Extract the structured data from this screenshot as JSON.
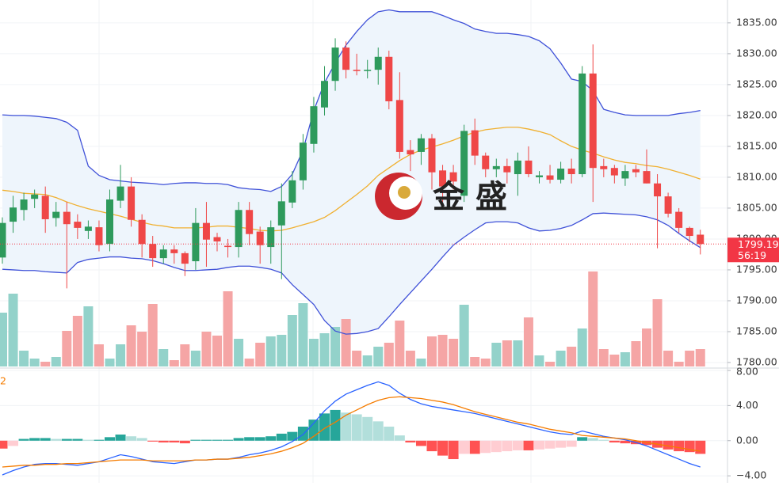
{
  "chart_data": [
    {
      "type": "candlestick",
      "watermark": "金 盛",
      "ylim": [
        1779.1,
        1838.7
      ],
      "yticks": [
        {
          "value": 1780,
          "label": "1780.00"
        },
        {
          "value": 1785,
          "label": "1785.00"
        },
        {
          "value": 1790,
          "label": "1790.00"
        },
        {
          "value": 1795,
          "label": "1795.00"
        },
        {
          "value": 1800,
          "label": "1800.00"
        },
        {
          "value": 1805,
          "label": "1805.00"
        },
        {
          "value": 1810,
          "label": "1810.00"
        },
        {
          "value": 1815,
          "label": "1815.00"
        },
        {
          "value": 1820,
          "label": "1820.00"
        },
        {
          "value": 1825,
          "label": "1825.00"
        },
        {
          "value": 1830,
          "label": "1830.00"
        },
        {
          "value": 1835,
          "label": "1835.00"
        }
      ],
      "grid": true,
      "up_color": "#2e9a5c",
      "down_color": "#ef4747",
      "volume_up_color": "#93d2ca",
      "volume_down_color": "#f5a5a5",
      "last_price": 1799.19,
      "countdown": "56:19",
      "last_price_color": "#f23645",
      "band_fill": "#eef5fc",
      "open": [
        1797.0,
        1802.8,
        1804.7,
        1806.5,
        1807.0,
        1803.4,
        1804.4,
        1802.8,
        1801.3,
        1801.9,
        1799.2,
        1806.2,
        1808.5,
        1803.1,
        1799.2,
        1796.9,
        1798.3,
        1797.7,
        1796.4,
        1802.6,
        1800.3,
        1798.9,
        1798.7,
        1804.7,
        1801.2,
        1798.7,
        1802.2,
        1805.9,
        1809.5,
        1815.4,
        1821.3,
        1825.6,
        1831.0,
        1827.4,
        1827.2,
        1827.4,
        1829.5,
        1822.5,
        1814.4,
        1814.1,
        1816.3,
        1811.1,
        1810.8,
        1807.0,
        1817.6,
        1813.5,
        1811.3,
        1811.8,
        1810.5,
        1812.7,
        1810.0,
        1810.3,
        1809.6,
        1811.4,
        1810.5,
        1826.8,
        1811.8,
        1811.5,
        1809.8,
        1811.3,
        1811.0,
        1809.0,
        1806.9,
        1804.4,
        1801.8,
        1800.7
      ],
      "high": [
        1803.5,
        1807.0,
        1807.5,
        1808.0,
        1808.5,
        1806.0,
        1806.0,
        1804.0,
        1803.0,
        1803.0,
        1808.0,
        1812.0,
        1810.0,
        1804.0,
        1800.5,
        1799.0,
        1799.0,
        1798.0,
        1805.0,
        1806.0,
        1801.0,
        1800.0,
        1806.0,
        1806.0,
        1802.0,
        1803.0,
        1809.0,
        1811.0,
        1817.0,
        1823.0,
        1828.0,
        1832.5,
        1832.0,
        1830.0,
        1829.0,
        1831.0,
        1830.5,
        1827.0,
        1816.0,
        1817.0,
        1817.0,
        1812.0,
        1812.0,
        1818.5,
        1819.5,
        1814.0,
        1813.0,
        1813.0,
        1814.0,
        1815.0,
        1811.0,
        1812.0,
        1812.5,
        1813.0,
        1828.0,
        1831.5,
        1813.0,
        1812.0,
        1812.0,
        1812.0,
        1814.5,
        1810.5,
        1807.5,
        1805.0,
        1802.0,
        1801.5
      ],
      "low": [
        1796.0,
        1801.0,
        1803.0,
        1805.0,
        1801.0,
        1802.0,
        1792.0,
        1800.0,
        1800.0,
        1798.0,
        1798.0,
        1805.0,
        1802.0,
        1797.0,
        1795.5,
        1796.0,
        1796.0,
        1794.0,
        1795.0,
        1795.5,
        1798.0,
        1797.0,
        1797.0,
        1799.0,
        1796.0,
        1796.0,
        1793.5,
        1805.0,
        1808.0,
        1814.0,
        1820.0,
        1824.0,
        1826.0,
        1826.5,
        1826.0,
        1825.0,
        1821.0,
        1813.0,
        1811.0,
        1812.0,
        1808.0,
        1806.0,
        1808.0,
        1806.0,
        1812.0,
        1810.0,
        1810.0,
        1809.0,
        1807.0,
        1810.0,
        1809.0,
        1809.0,
        1809.0,
        1809.0,
        1810.0,
        1806.0,
        1810.0,
        1809.0,
        1808.6,
        1810.0,
        1809.0,
        1798.5,
        1803.5,
        1801.0,
        1799.5,
        1797.5
      ],
      "close": [
        1802.6,
        1805.1,
        1806.4,
        1807.2,
        1803.2,
        1804.4,
        1802.4,
        1801.8,
        1802.0,
        1799.0,
        1806.4,
        1808.5,
        1803.1,
        1799.2,
        1796.9,
        1798.3,
        1797.7,
        1796.0,
        1802.6,
        1799.9,
        1799.6,
        1798.7,
        1804.7,
        1800.8,
        1799.0,
        1801.9,
        1806.1,
        1809.5,
        1815.6,
        1821.5,
        1825.6,
        1831.0,
        1827.4,
        1827.2,
        1827.4,
        1829.5,
        1822.3,
        1814.1,
        1813.7,
        1816.3,
        1810.8,
        1808.5,
        1809.3,
        1817.5,
        1813.5,
        1811.3,
        1811.8,
        1810.8,
        1812.7,
        1810.5,
        1810.3,
        1809.6,
        1811.4,
        1810.5,
        1826.8,
        1811.5,
        1811.3,
        1810.3,
        1811.0,
        1810.8,
        1809.0,
        1806.9,
        1804.1,
        1801.8,
        1800.5,
        1799.19
      ],
      "volume": [
        68,
        92,
        20,
        10,
        6,
        12,
        45,
        64,
        76,
        28,
        10,
        28,
        52,
        44,
        79,
        22,
        8,
        28,
        20,
        44,
        39,
        95,
        35,
        10,
        30,
        38,
        40,
        65,
        80,
        35,
        42,
        50,
        60,
        20,
        14,
        25,
        30,
        58,
        20,
        10,
        38,
        40,
        35,
        78,
        12,
        10,
        30,
        33,
        33,
        62,
        14,
        6,
        20,
        25,
        48,
        120,
        22,
        15,
        18,
        32,
        48,
        85,
        20,
        6,
        20,
        22
      ],
      "series": [
        {
          "color": "#3f51d8",
          "values": [
            1820.1,
            1820.0,
            1820.0,
            1819.9,
            1819.7,
            1819.5,
            1818.9,
            1817.6,
            1811.8,
            1810.3,
            1809.6,
            1809.4,
            1809.2,
            1809.1,
            1809.0,
            1808.8,
            1809.0,
            1809.1,
            1809.1,
            1809.0,
            1809.0,
            1808.8,
            1808.3,
            1808.1,
            1808.0,
            1807.7,
            1808.5,
            1810.5,
            1814.4,
            1820.8,
            1825.3,
            1828.5,
            1831.4,
            1833.6,
            1835.5,
            1836.8,
            1837.1,
            1836.8,
            1836.8,
            1836.8,
            1836.8,
            1836.2,
            1835.5,
            1834.9,
            1834.0,
            1833.6,
            1833.3,
            1833.3,
            1833.1,
            1832.8,
            1832.1,
            1830.8,
            1828.5,
            1825.9,
            1825.5,
            1824.0,
            1821.0,
            1820.5,
            1820.1,
            1820.0,
            1820.0,
            1820.0,
            1820.0,
            1820.3,
            1820.5,
            1820.8
          ]
        },
        {
          "color": "#f0b030",
          "values": [
            1807.9,
            1807.7,
            1807.4,
            1807.3,
            1807.2,
            1806.7,
            1806.0,
            1805.4,
            1804.9,
            1804.5,
            1804.1,
            1803.7,
            1803.2,
            1802.7,
            1802.3,
            1802.1,
            1801.8,
            1801.8,
            1801.8,
            1801.9,
            1802.1,
            1802.1,
            1801.9,
            1801.7,
            1801.4,
            1801.3,
            1801.4,
            1801.8,
            1802.3,
            1802.8,
            1803.5,
            1804.6,
            1805.9,
            1807.2,
            1808.6,
            1810.3,
            1811.5,
            1812.7,
            1813.7,
            1814.4,
            1814.9,
            1815.4,
            1816.0,
            1816.7,
            1817.3,
            1817.7,
            1817.9,
            1818.1,
            1818.1,
            1817.8,
            1817.4,
            1816.9,
            1815.9,
            1815.0,
            1814.4,
            1813.9,
            1813.3,
            1812.8,
            1812.4,
            1812.2,
            1811.9,
            1811.7,
            1811.3,
            1810.8,
            1810.3,
            1809.7
          ]
        },
        {
          "color": "#3f51d8",
          "values": [
            1795.1,
            1795.0,
            1794.9,
            1794.9,
            1794.7,
            1794.6,
            1794.5,
            1796.2,
            1796.7,
            1796.9,
            1797.1,
            1797.1,
            1796.9,
            1796.8,
            1796.5,
            1796.0,
            1795.4,
            1794.9,
            1794.9,
            1795.0,
            1795.1,
            1795.4,
            1795.6,
            1795.6,
            1795.4,
            1795.1,
            1794.5,
            1792.6,
            1791.0,
            1789.4,
            1786.8,
            1785.1,
            1784.6,
            1784.7,
            1785.0,
            1785.5,
            1787.4,
            1789.4,
            1791.3,
            1793.2,
            1795.1,
            1797.1,
            1799.0,
            1800.3,
            1801.5,
            1802.6,
            1802.8,
            1802.8,
            1802.6,
            1801.8,
            1801.3,
            1801.4,
            1801.7,
            1802.2,
            1803.1,
            1804.1,
            1804.2,
            1804.1,
            1804.0,
            1803.9,
            1803.6,
            1803.1,
            1802.2,
            1800.9,
            1799.7,
            1798.6
          ]
        }
      ]
    },
    {
      "type": "macd",
      "label": "2",
      "label_color": "#f57c00",
      "ylim": [
        -4.8,
        8.0
      ],
      "yticks": [
        {
          "value": -4,
          "label": "−4.00"
        },
        {
          "value": 0,
          "label": "0.00"
        },
        {
          "value": 4,
          "label": "4.00"
        },
        {
          "value": 8,
          "label": "8.00"
        }
      ],
      "grid": true,
      "histogram_colors": [
        "#26a69a",
        "#b2dfdb",
        "#ff5252",
        "#ffcdd2"
      ],
      "histogram": [
        -0.9,
        -0.6,
        0.2,
        0.3,
        0.3,
        0.2,
        0.2,
        0.2,
        0.1,
        0.1,
        0.4,
        0.7,
        0.5,
        0.3,
        -0.1,
        -0.2,
        -0.2,
        -0.3,
        0.1,
        0.1,
        0.1,
        0.1,
        0.3,
        0.4,
        0.4,
        0.5,
        0.8,
        1.0,
        1.6,
        2.4,
        3.1,
        3.5,
        3.2,
        3.0,
        2.7,
        2.2,
        1.6,
        0.6,
        -0.2,
        -0.6,
        -1.2,
        -1.7,
        -2.1,
        -1.5,
        -1.5,
        -1.4,
        -1.3,
        -1.2,
        -1.1,
        -1.1,
        -1.0,
        -0.9,
        -0.8,
        -0.7,
        0.4,
        0.3,
        0.1,
        -0.2,
        -0.3,
        -0.4,
        -0.5,
        -0.8,
        -1.0,
        -1.2,
        -1.3,
        -1.5
      ],
      "series": [
        {
          "color": "#2962ff",
          "values": [
            -3.9,
            -3.4,
            -3.0,
            -2.7,
            -2.6,
            -2.6,
            -2.7,
            -2.8,
            -2.6,
            -2.4,
            -2.0,
            -1.6,
            -1.8,
            -2.1,
            -2.4,
            -2.5,
            -2.6,
            -2.4,
            -2.2,
            -2.2,
            -2.1,
            -2.1,
            -1.9,
            -1.6,
            -1.4,
            -1.1,
            -0.7,
            -0.1,
            0.7,
            2.0,
            3.4,
            4.5,
            5.3,
            5.8,
            6.3,
            6.7,
            6.3,
            5.4,
            4.7,
            4.2,
            3.9,
            3.7,
            3.5,
            3.3,
            3.1,
            2.8,
            2.5,
            2.2,
            1.9,
            1.6,
            1.3,
            1.0,
            0.8,
            0.7,
            1.1,
            0.8,
            0.5,
            0.3,
            0.1,
            -0.2,
            -0.6,
            -1.1,
            -1.6,
            -2.1,
            -2.6,
            -3.0
          ]
        },
        {
          "color": "#f57c00",
          "values": [
            -3.0,
            -2.9,
            -2.8,
            -2.8,
            -2.7,
            -2.7,
            -2.6,
            -2.6,
            -2.5,
            -2.4,
            -2.3,
            -2.2,
            -2.2,
            -2.2,
            -2.3,
            -2.3,
            -2.3,
            -2.3,
            -2.2,
            -2.2,
            -2.1,
            -2.1,
            -2.0,
            -1.9,
            -1.7,
            -1.5,
            -1.2,
            -0.8,
            -0.3,
            0.5,
            1.4,
            2.1,
            2.9,
            3.5,
            4.1,
            4.6,
            4.9,
            5.0,
            4.9,
            4.8,
            4.6,
            4.4,
            4.1,
            3.7,
            3.3,
            3.0,
            2.7,
            2.4,
            2.1,
            1.9,
            1.6,
            1.3,
            1.1,
            0.9,
            0.6,
            0.5,
            0.4,
            0.3,
            0.2,
            0.0,
            -0.2,
            -0.4,
            -0.6,
            -0.8,
            -1.0,
            -1.2
          ]
        }
      ]
    }
  ]
}
